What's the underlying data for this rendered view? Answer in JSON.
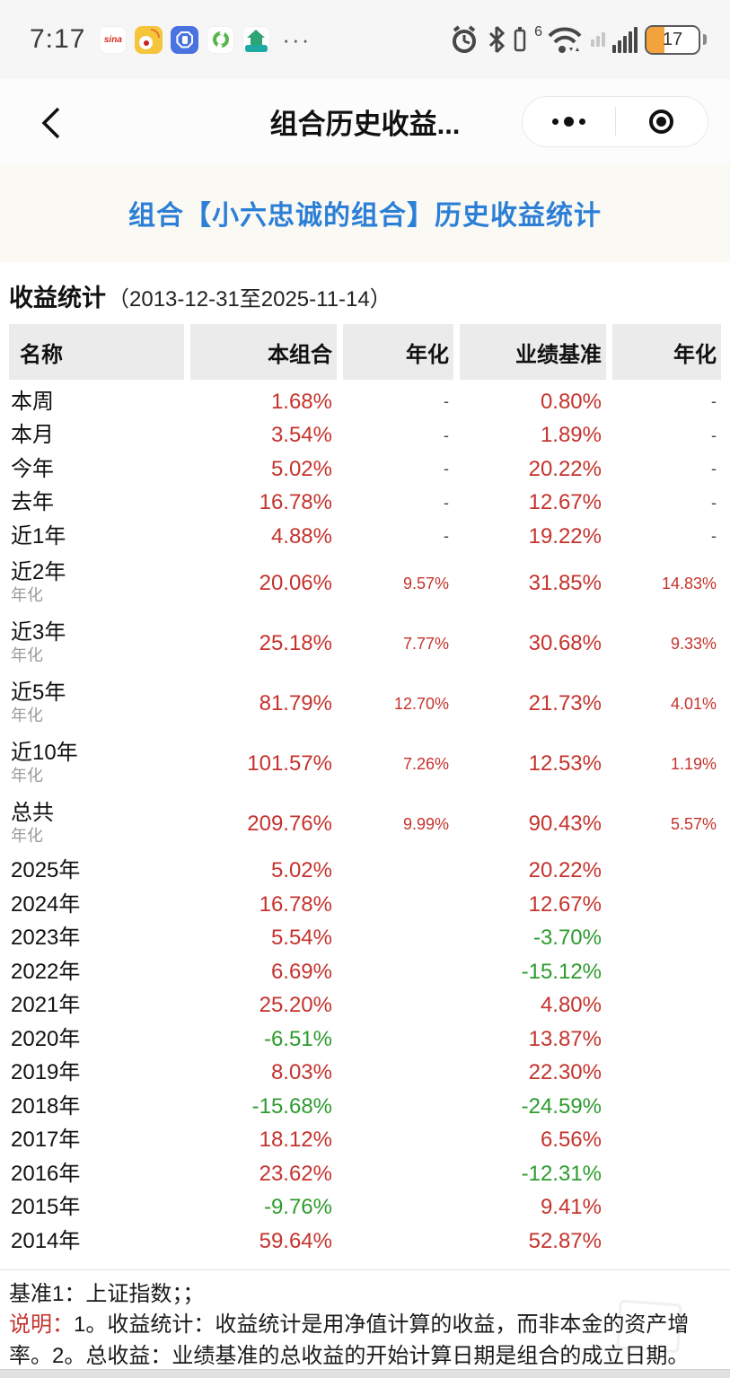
{
  "colors": {
    "gain_red": "#C5332D",
    "loss_green": "#2E9B2E",
    "accent_blue": "#2C7FD6",
    "header_grey": "#EBEBEB"
  },
  "status_bar": {
    "time": "7:17",
    "sina_label": "sina",
    "network_gen": "6",
    "battery_percent": "17",
    "more": "···"
  },
  "nav": {
    "title": "组合历史收益..."
  },
  "page": {
    "heading": "组合【小六忠诚的组合】历史收益统计"
  },
  "stats": {
    "title": "收益统计",
    "range": "（2013-12-31至2025-11-14）",
    "columns": [
      "名称",
      "本组合",
      "年化",
      "业绩基准",
      "年化"
    ],
    "rows": [
      {
        "name": "本周",
        "sub": "",
        "cells": [
          {
            "t": "1.68%",
            "c": "red"
          },
          {
            "t": "-",
            "c": "plain"
          },
          {
            "t": "0.80%",
            "c": "red"
          },
          {
            "t": "-",
            "c": "plain"
          }
        ]
      },
      {
        "name": "本月",
        "sub": "",
        "cells": [
          {
            "t": "3.54%",
            "c": "red"
          },
          {
            "t": "-",
            "c": "plain"
          },
          {
            "t": "1.89%",
            "c": "red"
          },
          {
            "t": "-",
            "c": "plain"
          }
        ]
      },
      {
        "name": "今年",
        "sub": "",
        "cells": [
          {
            "t": "5.02%",
            "c": "red"
          },
          {
            "t": "-",
            "c": "plain"
          },
          {
            "t": "20.22%",
            "c": "red"
          },
          {
            "t": "-",
            "c": "plain"
          }
        ]
      },
      {
        "name": "去年",
        "sub": "",
        "cells": [
          {
            "t": "16.78%",
            "c": "red"
          },
          {
            "t": "-",
            "c": "plain"
          },
          {
            "t": "12.67%",
            "c": "red"
          },
          {
            "t": "-",
            "c": "plain"
          }
        ]
      },
      {
        "name": "近1年",
        "sub": "",
        "cells": [
          {
            "t": "4.88%",
            "c": "red"
          },
          {
            "t": "-",
            "c": "plain"
          },
          {
            "t": "19.22%",
            "c": "red"
          },
          {
            "t": "-",
            "c": "plain"
          }
        ]
      },
      {
        "name": "近2年",
        "sub": "年化",
        "cells": [
          {
            "t": "20.06%",
            "c": "red"
          },
          {
            "t": "9.57%",
            "c": "red"
          },
          {
            "t": "31.85%",
            "c": "red"
          },
          {
            "t": "14.83%",
            "c": "red"
          }
        ]
      },
      {
        "name": "近3年",
        "sub": "年化",
        "cells": [
          {
            "t": "25.18%",
            "c": "red"
          },
          {
            "t": "7.77%",
            "c": "red"
          },
          {
            "t": "30.68%",
            "c": "red"
          },
          {
            "t": "9.33%",
            "c": "red"
          }
        ]
      },
      {
        "name": "近5年",
        "sub": "年化",
        "cells": [
          {
            "t": "81.79%",
            "c": "red"
          },
          {
            "t": "12.70%",
            "c": "red"
          },
          {
            "t": "21.73%",
            "c": "red"
          },
          {
            "t": "4.01%",
            "c": "red"
          }
        ]
      },
      {
        "name": "近10年",
        "sub": "年化",
        "cells": [
          {
            "t": "101.57%",
            "c": "red"
          },
          {
            "t": "7.26%",
            "c": "red"
          },
          {
            "t": "12.53%",
            "c": "red"
          },
          {
            "t": "1.19%",
            "c": "red"
          }
        ]
      },
      {
        "name": "总共",
        "sub": "年化",
        "cells": [
          {
            "t": "209.76%",
            "c": "red"
          },
          {
            "t": "9.99%",
            "c": "red"
          },
          {
            "t": "90.43%",
            "c": "red"
          },
          {
            "t": "5.57%",
            "c": "red"
          }
        ]
      },
      {
        "name": "2025年",
        "sub": "",
        "cells": [
          {
            "t": "5.02%",
            "c": "red"
          },
          {
            "t": "",
            "c": "plain"
          },
          {
            "t": "20.22%",
            "c": "red"
          },
          {
            "t": "",
            "c": "plain"
          }
        ]
      },
      {
        "name": "2024年",
        "sub": "",
        "cells": [
          {
            "t": "16.78%",
            "c": "red"
          },
          {
            "t": "",
            "c": "plain"
          },
          {
            "t": "12.67%",
            "c": "red"
          },
          {
            "t": "",
            "c": "plain"
          }
        ]
      },
      {
        "name": "2023年",
        "sub": "",
        "cells": [
          {
            "t": "5.54%",
            "c": "red"
          },
          {
            "t": "",
            "c": "plain"
          },
          {
            "t": "-3.70%",
            "c": "green"
          },
          {
            "t": "",
            "c": "plain"
          }
        ]
      },
      {
        "name": "2022年",
        "sub": "",
        "cells": [
          {
            "t": "6.69%",
            "c": "red"
          },
          {
            "t": "",
            "c": "plain"
          },
          {
            "t": "-15.12%",
            "c": "green"
          },
          {
            "t": "",
            "c": "plain"
          }
        ]
      },
      {
        "name": "2021年",
        "sub": "",
        "cells": [
          {
            "t": "25.20%",
            "c": "red"
          },
          {
            "t": "",
            "c": "plain"
          },
          {
            "t": "4.80%",
            "c": "red"
          },
          {
            "t": "",
            "c": "plain"
          }
        ]
      },
      {
        "name": "2020年",
        "sub": "",
        "cells": [
          {
            "t": "-6.51%",
            "c": "green"
          },
          {
            "t": "",
            "c": "plain"
          },
          {
            "t": "13.87%",
            "c": "red"
          },
          {
            "t": "",
            "c": "plain"
          }
        ]
      },
      {
        "name": "2019年",
        "sub": "",
        "cells": [
          {
            "t": "8.03%",
            "c": "red"
          },
          {
            "t": "",
            "c": "plain"
          },
          {
            "t": "22.30%",
            "c": "red"
          },
          {
            "t": "",
            "c": "plain"
          }
        ]
      },
      {
        "name": "2018年",
        "sub": "",
        "cells": [
          {
            "t": "-15.68%",
            "c": "green"
          },
          {
            "t": "",
            "c": "plain"
          },
          {
            "t": "-24.59%",
            "c": "green"
          },
          {
            "t": "",
            "c": "plain"
          }
        ]
      },
      {
        "name": "2017年",
        "sub": "",
        "cells": [
          {
            "t": "18.12%",
            "c": "red"
          },
          {
            "t": "",
            "c": "plain"
          },
          {
            "t": "6.56%",
            "c": "red"
          },
          {
            "t": "",
            "c": "plain"
          }
        ]
      },
      {
        "name": "2016年",
        "sub": "",
        "cells": [
          {
            "t": "23.62%",
            "c": "red"
          },
          {
            "t": "",
            "c": "plain"
          },
          {
            "t": "-12.31%",
            "c": "green"
          },
          {
            "t": "",
            "c": "plain"
          }
        ]
      },
      {
        "name": "2015年",
        "sub": "",
        "cells": [
          {
            "t": "-9.76%",
            "c": "green"
          },
          {
            "t": "",
            "c": "plain"
          },
          {
            "t": "9.41%",
            "c": "red"
          },
          {
            "t": "",
            "c": "plain"
          }
        ]
      },
      {
        "name": "2014年",
        "sub": "",
        "cells": [
          {
            "t": "59.64%",
            "c": "red"
          },
          {
            "t": "",
            "c": "plain"
          },
          {
            "t": "52.87%",
            "c": "red"
          },
          {
            "t": "",
            "c": "plain"
          }
        ]
      }
    ]
  },
  "footer": {
    "benchmark_line": "基准1：上证指数；；",
    "note_label": "说明：",
    "note_text": "1。收益统计：收益统计是用净值计算的收益，而非本金的资产增率。2。总收益：业绩基准的总收益的开始计算日期是组合的成立日期。"
  }
}
